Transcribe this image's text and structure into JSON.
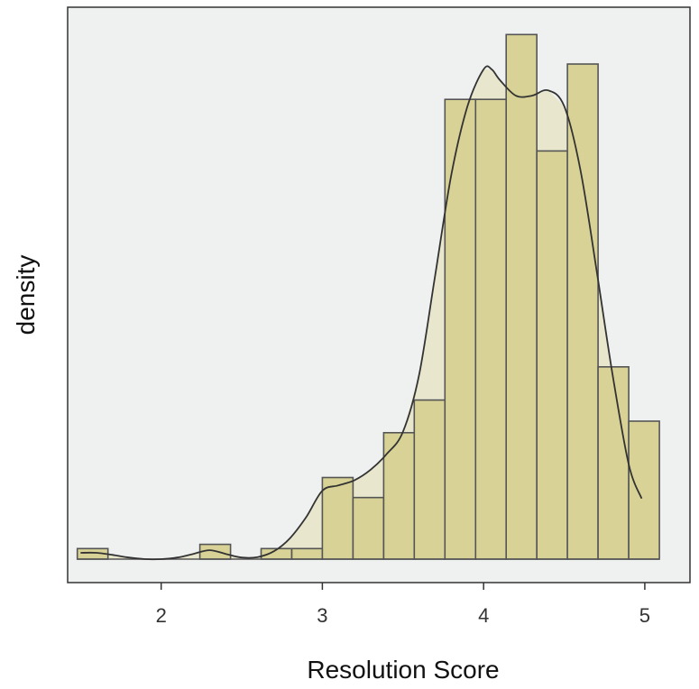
{
  "chart_data": {
    "type": "histogram",
    "xlabel": "Resolution Score",
    "ylabel": "density",
    "xlim": [
      1.42,
      5.28
    ],
    "ylim": [
      0,
      1.0
    ],
    "x_ticks": [
      2,
      3,
      4,
      5
    ],
    "y_ticks_shown": false,
    "grid": false,
    "colors": {
      "panel_bg": "#EEF1EF",
      "bar_fill": "#D8D296",
      "bar_stroke": "#555555",
      "density_fill": "#E8E6CC",
      "density_line": "#333333"
    },
    "bins": {
      "edges": [
        1.48,
        1.67,
        1.86,
        2.05,
        2.24,
        2.43,
        2.62,
        2.81,
        3.0,
        3.19,
        3.38,
        3.57,
        3.76,
        3.95,
        4.14,
        4.33,
        4.52,
        4.71,
        4.9,
        5.09
      ],
      "values": [
        0.02,
        0,
        0,
        0,
        0.028,
        0,
        0.02,
        0.02,
        0.155,
        0.117,
        0.24,
        0.302,
        0.873,
        0.873,
        0.996,
        0.775,
        0.94,
        0.365,
        0.262
      ]
    },
    "density": {
      "x": [
        1.5,
        1.6,
        1.7,
        1.8,
        1.9,
        2.0,
        2.1,
        2.2,
        2.3,
        2.4,
        2.5,
        2.6,
        2.7,
        2.8,
        2.9,
        3.0,
        3.1,
        3.2,
        3.3,
        3.4,
        3.5,
        3.6,
        3.7,
        3.8,
        3.9,
        4.0,
        4.05,
        4.1,
        4.2,
        4.3,
        4.4,
        4.5,
        4.6,
        4.7,
        4.8,
        4.9,
        4.98
      ],
      "y": [
        0.012,
        0.012,
        0.008,
        0.003,
        0.0,
        0.0,
        0.003,
        0.01,
        0.017,
        0.01,
        0.003,
        0.004,
        0.015,
        0.04,
        0.08,
        0.13,
        0.14,
        0.15,
        0.17,
        0.2,
        0.242,
        0.35,
        0.54,
        0.73,
        0.86,
        0.93,
        0.93,
        0.91,
        0.88,
        0.88,
        0.89,
        0.86,
        0.74,
        0.55,
        0.35,
        0.18,
        0.115
      ]
    }
  }
}
